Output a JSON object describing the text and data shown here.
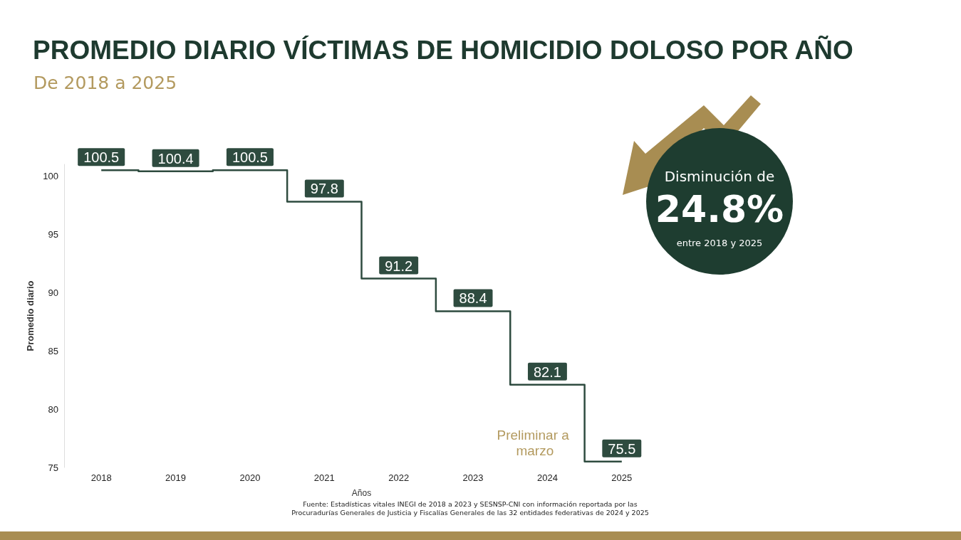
{
  "chart_data": {
    "type": "step",
    "title": "PROMEDIO DIARIO VÍCTIMAS DE HOMICIDIO DOLOSO POR AÑO",
    "subtitle": "De 2018 a 2025",
    "xlabel": "Años",
    "ylabel": "Promedio diario",
    "categories": [
      "2018",
      "2019",
      "2020",
      "2021",
      "2022",
      "2023",
      "2024",
      "2025"
    ],
    "values": [
      100.5,
      100.4,
      100.5,
      97.8,
      91.2,
      88.4,
      82.1,
      75.5
    ],
    "color": "#2e4b3f",
    "ylim": [
      75,
      101
    ],
    "yticks": [
      75,
      80,
      85,
      90,
      95,
      100
    ],
    "grid": false,
    "marker": "none",
    "line_style": "solid",
    "data_labels": true,
    "annotations": [
      "Preliminar a marzo",
      "Disminución de",
      "24.8%",
      "entre 2018 y 2025",
      "Fuente: Estadísticas vitales INEGI de 2018 a 2023 y SESNSP-CNI con información reportada por las Procuradurías Generales de Justicia y Fiscalías Generales de las 32 entidades federativas de 2024 y 2025"
    ]
  }
}
